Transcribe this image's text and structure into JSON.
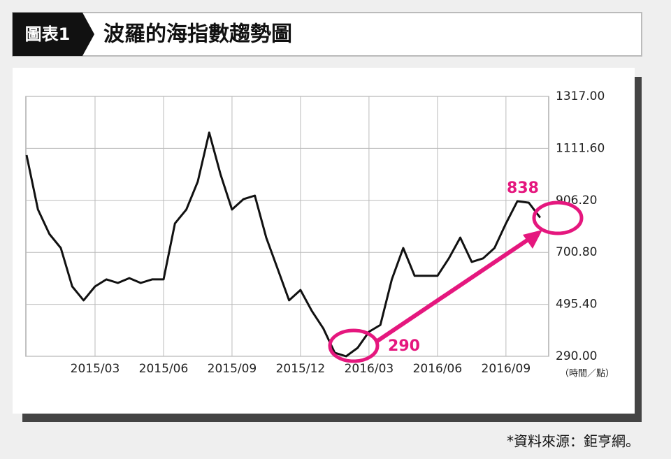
{
  "header": {
    "label": "圖表1",
    "title": "波羅的海指數趨勢圖"
  },
  "chart_data": {
    "type": "line",
    "categories": [
      null,
      null,
      null,
      null,
      null,
      null,
      "2015/03",
      null,
      null,
      null,
      null,
      null,
      "2015/06",
      null,
      null,
      null,
      null,
      null,
      "2015/09",
      null,
      null,
      null,
      null,
      null,
      "2015/12",
      null,
      null,
      null,
      null,
      null,
      "2016/03",
      null,
      null,
      null,
      null,
      null,
      "2016/06",
      null,
      null,
      null,
      null,
      null,
      "2016/09",
      null,
      null,
      null
    ],
    "values": [
      1085,
      870,
      773,
      718,
      566,
      511,
      566,
      594,
      580,
      599,
      580,
      594,
      594,
      815,
      870,
      980,
      1174,
      1008,
      870,
      911,
      925,
      759,
      635,
      511,
      552,
      469,
      400,
      304,
      290,
      323,
      387,
      414,
      594,
      718,
      608,
      608,
      608,
      677,
      759,
      663,
      677,
      718,
      815,
      903,
      897,
      838
    ],
    "color": "#111111",
    "ylim": [
      290,
      1317
    ],
    "yticks": [
      {
        "value": 290,
        "label": "290.00"
      },
      {
        "value": 495.4,
        "label": "495.40"
      },
      {
        "value": 700.8,
        "label": "700.80"
      },
      {
        "value": 906.2,
        "label": "906.20"
      },
      {
        "value": 1111.6,
        "label": "1111.60"
      },
      {
        "value": 1317,
        "label": "1317.00"
      }
    ],
    "grid": true,
    "y_unit_label": "（時間／點）",
    "annotations": [
      "838",
      "290"
    ],
    "annotation_color": "#e5177e"
  },
  "source": "*資料來源：鉅亨網。"
}
